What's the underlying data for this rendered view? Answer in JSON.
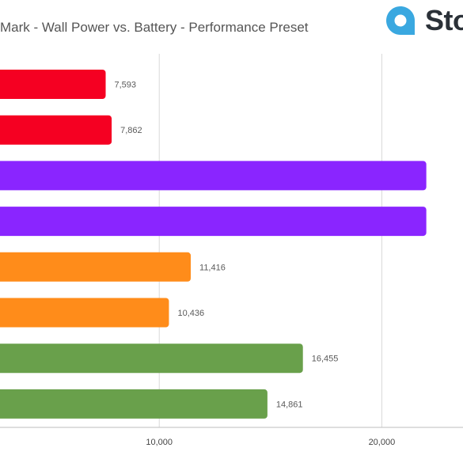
{
  "chart_title": "Mark - Wall Power vs. Battery - Performance Preset",
  "logo": {
    "text": "Sto",
    "icon": "pin-drop-icon",
    "color": "#3aa8e0"
  },
  "chart_data": {
    "type": "bar",
    "orientation": "horizontal",
    "title": "Mark - Wall Power vs. Battery - Performance Preset",
    "xlabel": "",
    "ylabel": "",
    "xlim": [
      0,
      21000
    ],
    "grid": true,
    "x_ticks": [
      "10,000",
      "20,000"
    ],
    "bars": [
      {
        "value": 7593,
        "label": "7,593",
        "color": "#f50022"
      },
      {
        "value": 7862,
        "label": "7,862",
        "color": "#f50022"
      },
      {
        "value": 22000,
        "label": "",
        "color": "#8a25ff"
      },
      {
        "value": 22000,
        "label": "",
        "color": "#8a25ff"
      },
      {
        "value": 11416,
        "label": "11,416",
        "color": "#ff8c1a"
      },
      {
        "value": 10436,
        "label": "10,436",
        "color": "#ff8c1a"
      },
      {
        "value": 16455,
        "label": "16,455",
        "color": "#69a04b"
      },
      {
        "value": 14861,
        "label": "14,861",
        "color": "#69a04b"
      }
    ]
  }
}
